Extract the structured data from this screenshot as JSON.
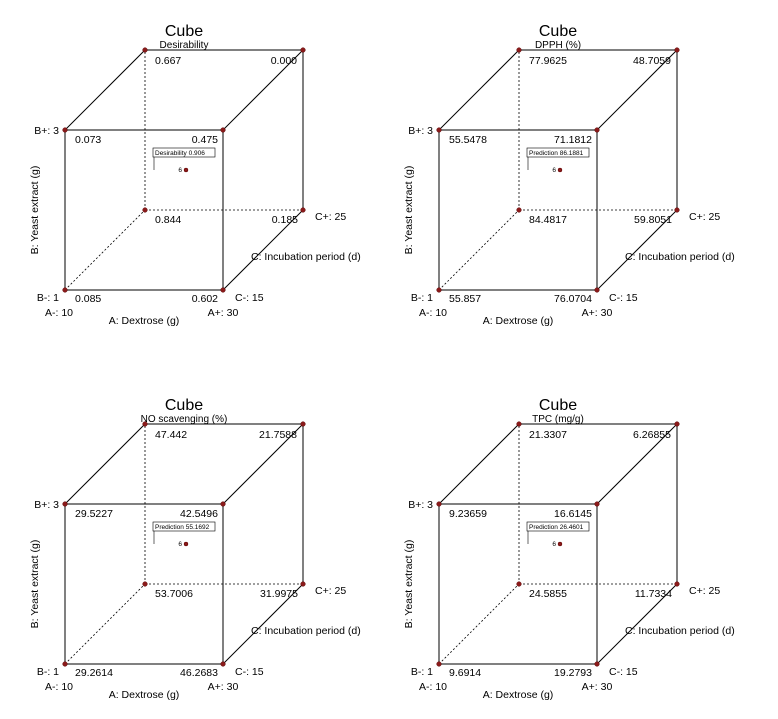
{
  "chart_data": [
    {
      "type": "cube",
      "title": "Cube",
      "subtitle": "Desirability",
      "factors": {
        "A": {
          "label": "A: Dextrose (g)",
          "low": "A-: 10",
          "high": "A+: 30"
        },
        "B": {
          "label": "B: Yeast extract (g)",
          "low": "B-: 1",
          "high": "B+: 3"
        },
        "C": {
          "label": "C: Incubation period (d)",
          "low": "C-: 15",
          "high": "C+: 25"
        }
      },
      "corners": {
        "a0b0c0": "0.085",
        "a1b0c0": "0.602",
        "a0b1c0": "0.073",
        "a1b1c0": "0.475",
        "a0b0c1": "0.844",
        "a1b0c1": "0.185",
        "a0b1c1": "0.667",
        "a1b1c1": "0.000"
      },
      "center_flag": "Desirability 0.906",
      "center_count": "6"
    },
    {
      "type": "cube",
      "title": "Cube",
      "subtitle": "DPPH (%)",
      "factors": {
        "A": {
          "label": "A: Dextrose (g)",
          "low": "A-: 10",
          "high": "A+: 30"
        },
        "B": {
          "label": "B: Yeast extract (g)",
          "low": "B-: 1",
          "high": "B+: 3"
        },
        "C": {
          "label": "C: Incubation period (d)",
          "low": "C-: 15",
          "high": "C+: 25"
        }
      },
      "corners": {
        "a0b0c0": "55.857",
        "a1b0c0": "76.0704",
        "a0b1c0": "55.5478",
        "a1b1c0": "71.1812",
        "a0b0c1": "84.4817",
        "a1b0c1": "59.8051",
        "a0b1c1": "77.9625",
        "a1b1c1": "48.7059"
      },
      "center_flag": "Prediction 86.1881",
      "center_count": "6"
    },
    {
      "type": "cube",
      "title": "Cube",
      "subtitle": "NO scavenging (%)",
      "factors": {
        "A": {
          "label": "A: Dextrose (g)",
          "low": "A-: 10",
          "high": "A+: 30"
        },
        "B": {
          "label": "B: Yeast extract (g)",
          "low": "B-: 1",
          "high": "B+: 3"
        },
        "C": {
          "label": "C: Incubation period (d)",
          "low": "C-: 15",
          "high": "C+: 25"
        }
      },
      "corners": {
        "a0b0c0": "29.2614",
        "a1b0c0": "46.2683",
        "a0b1c0": "29.5227",
        "a1b1c0": "42.5496",
        "a0b0c1": "53.7006",
        "a1b0c1": "31.9975",
        "a0b1c1": "47.442",
        "a1b1c1": "21.7588"
      },
      "center_flag": "Prediction 55.1692",
      "center_count": "6"
    },
    {
      "type": "cube",
      "title": "Cube",
      "subtitle": "TPC (mg/g)",
      "factors": {
        "A": {
          "label": "A: Dextrose (g)",
          "low": "A-: 10",
          "high": "A+: 30"
        },
        "B": {
          "label": "B: Yeast extract (g)",
          "low": "B-: 1",
          "high": "B+: 3"
        },
        "C": {
          "label": "C: Incubation period (d)",
          "low": "C-: 15",
          "high": "C+: 25"
        }
      },
      "corners": {
        "a0b0c0": "9.6914",
        "a1b0c0": "19.2793",
        "a0b1c0": "9.23659",
        "a1b1c0": "16.6145",
        "a0b0c1": "24.5855",
        "a1b0c1": "11.7334",
        "a0b1c1": "21.3307",
        "a1b1c1": "6.26855"
      },
      "center_flag": "Prediction 26.4601",
      "center_count": "6"
    }
  ]
}
